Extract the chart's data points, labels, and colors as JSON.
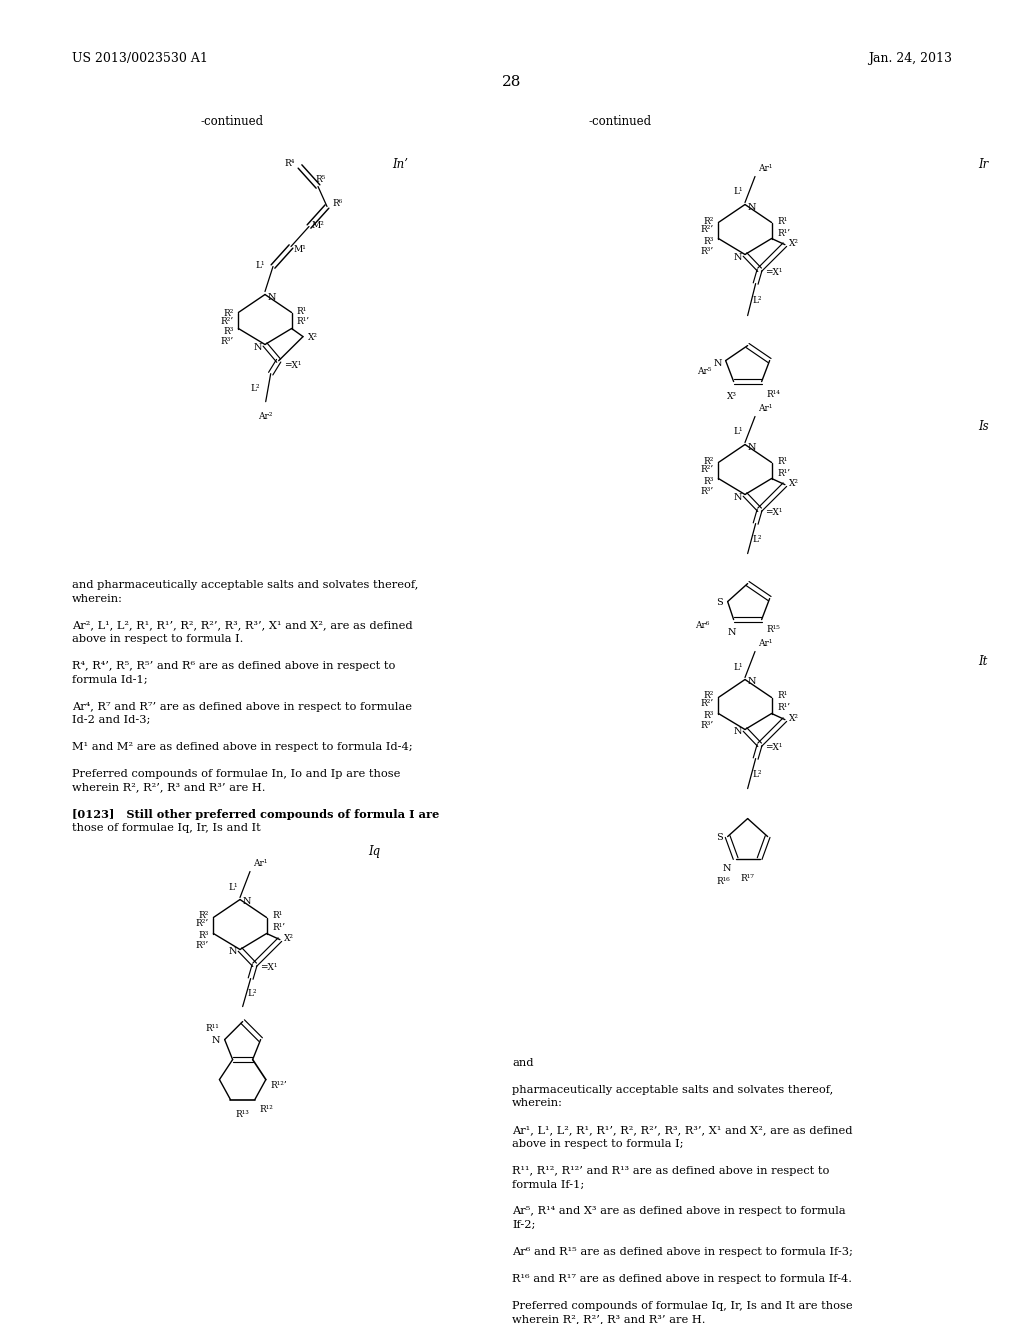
{
  "page_header_left": "US 2013/0023530 A1",
  "page_header_right": "Jan. 24, 2013",
  "page_number": "28",
  "bg": "#ffffff",
  "tc": "#000000"
}
